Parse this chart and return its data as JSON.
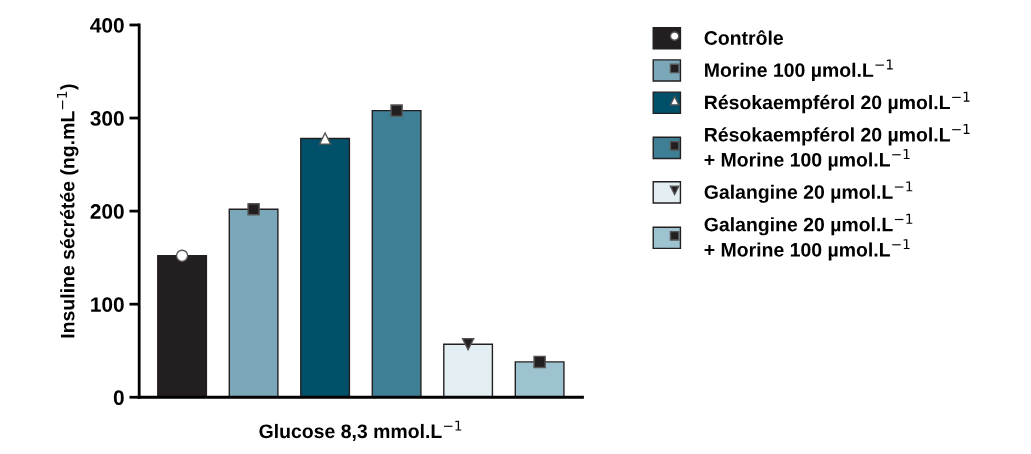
{
  "chart_data": {
    "type": "bar",
    "xlabel": "Glucose 8,3 mmol.L$^{−1}$",
    "ylabel": "Insuline sécrétée (ng.mL$^{−1}$)",
    "categories": [
      null,
      null,
      null,
      null,
      null,
      null
    ],
    "series": [
      {
        "name": "Contrôle",
        "color": "#231f20",
        "values": [
          152,
          null,
          null,
          null,
          null,
          null
        ]
      },
      {
        "name": "Morine 100 µmol.L$^{−1}$",
        "color": "#7aa8b8",
        "values": [
          null,
          202,
          null,
          null,
          null,
          null
        ]
      },
      {
        "name": "Résokaempférol 20 µmol.L$^{−1}$",
        "color": "#00506a",
        "values": [
          null,
          null,
          278,
          null,
          null,
          null
        ]
      },
      {
        "name": "Résokaempférol 20 µmol.L$^{−1}$\n+ Morine 100 µmol.L$^{−1}$",
        "color": "#3f7f96",
        "values": [
          null,
          null,
          null,
          308,
          null,
          null
        ]
      },
      {
        "name": "Galangine 20 µmol.L$^{−1}$",
        "color": "#e2eef2",
        "values": [
          null,
          null,
          null,
          null,
          57,
          null
        ]
      },
      {
        "name": "Galangine 20 µmol.L$^{−1}$\n+ Morine 100 µmol.L$^{−1}$",
        "color": "#9cc3cf",
        "values": [
          null,
          null,
          null,
          null,
          null,
          38
        ]
      },
      {
        "type": "scatter",
        "marker": "circle",
        "color": "#ffffff",
        "values": [
          152,
          null,
          null,
          null,
          null,
          null
        ]
      },
      {
        "type": "scatter",
        "marker": "square",
        "color": "#231f20",
        "values": [
          null,
          202,
          null,
          308,
          null,
          38
        ]
      },
      {
        "type": "scatter",
        "marker": "triangle",
        "color": "#ffffff",
        "values": [
          null,
          null,
          278,
          null,
          null,
          null
        ]
      },
      {
        "type": "scatter",
        "marker": "triangle_down",
        "color": "#231f20",
        "values": [
          null,
          null,
          null,
          null,
          57,
          null
        ]
      }
    ],
    "ylim": [
      0,
      400
    ],
    "yticks": [
      0,
      100,
      200,
      300,
      400
    ],
    "grid": false,
    "legend": "right"
  }
}
